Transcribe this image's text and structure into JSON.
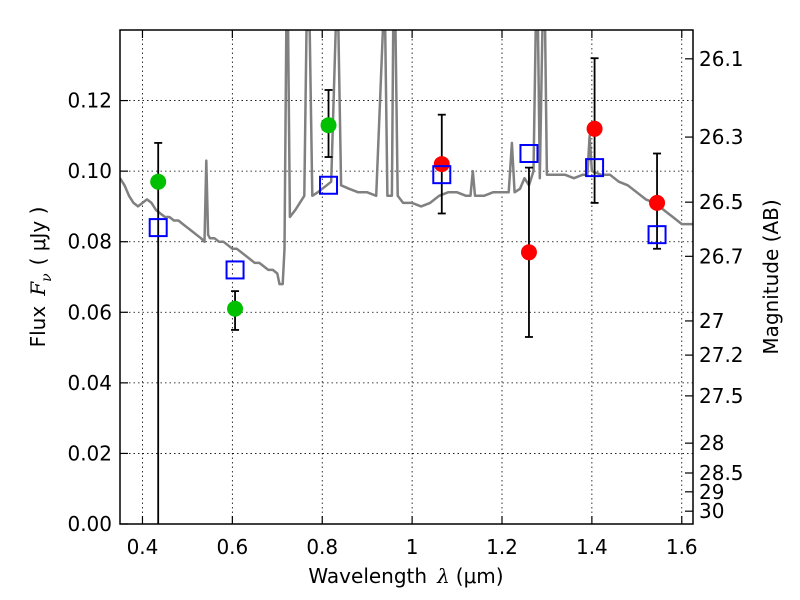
{
  "chart_data": {
    "type": "scatter",
    "xlabel_prefix": "Wavelength",
    "xlabel_symbol": "λ",
    "xlabel_unit": "(μm)",
    "ylabel_prefix": "Flux",
    "ylabel_symbol": "F",
    "ylabel_subscript": "ν",
    "ylabel_unit": "( μJy )",
    "y2label": "Magnitude (AB)",
    "xlim": [
      0.35,
      1.625
    ],
    "ylim": [
      0.0,
      0.14
    ],
    "grid": true,
    "x_ticks": [
      0.4,
      0.6,
      0.8,
      1.0,
      1.2,
      1.4,
      1.6
    ],
    "x_tick_labels": [
      "0.4",
      "0.6",
      "0.8",
      "1",
      "1.2",
      "1.4",
      "1.6"
    ],
    "y_ticks": [
      0.0,
      0.02,
      0.04,
      0.06,
      0.08,
      0.1,
      0.12
    ],
    "y_tick_labels": [
      "0.00",
      "0.02",
      "0.04",
      "0.06",
      "0.08",
      "0.10",
      "0.12"
    ],
    "y2_ticks": [
      {
        "mag": 26.1,
        "label": "26.1"
      },
      {
        "mag": 26.3,
        "label": "26.3"
      },
      {
        "mag": 26.5,
        "label": "26.5"
      },
      {
        "mag": 26.7,
        "label": "26.7"
      },
      {
        "mag": 27.0,
        "label": "27"
      },
      {
        "mag": 27.2,
        "label": "27.2"
      },
      {
        "mag": 27.5,
        "label": "27.5"
      },
      {
        "mag": 28.0,
        "label": "28"
      },
      {
        "mag": 28.5,
        "label": "28.5"
      },
      {
        "mag": 29.0,
        "label": "29"
      },
      {
        "mag": 30.0,
        "label": "30"
      }
    ],
    "colors": {
      "template": "#808080",
      "green": "#00c000",
      "red": "#ff0000",
      "model_box": "#0000ff",
      "errorbar": "#000000"
    },
    "template_spectrum": [
      [
        0.35,
        0.098
      ],
      [
        0.36,
        0.096
      ],
      [
        0.37,
        0.093
      ],
      [
        0.38,
        0.091
      ],
      [
        0.39,
        0.09
      ],
      [
        0.4,
        0.091
      ],
      [
        0.41,
        0.092
      ],
      [
        0.42,
        0.091
      ],
      [
        0.43,
        0.089
      ],
      [
        0.44,
        0.088
      ],
      [
        0.45,
        0.087
      ],
      [
        0.46,
        0.087
      ],
      [
        0.47,
        0.086
      ],
      [
        0.48,
        0.086
      ],
      [
        0.49,
        0.085
      ],
      [
        0.5,
        0.084
      ],
      [
        0.51,
        0.083
      ],
      [
        0.52,
        0.082
      ],
      [
        0.53,
        0.081
      ],
      [
        0.538,
        0.08
      ],
      [
        0.542,
        0.103
      ],
      [
        0.546,
        0.082
      ],
      [
        0.55,
        0.081
      ],
      [
        0.56,
        0.081
      ],
      [
        0.57,
        0.08
      ],
      [
        0.58,
        0.08
      ],
      [
        0.59,
        0.079
      ],
      [
        0.6,
        0.078
      ],
      [
        0.61,
        0.078
      ],
      [
        0.62,
        0.077
      ],
      [
        0.63,
        0.076
      ],
      [
        0.64,
        0.075
      ],
      [
        0.65,
        0.074
      ],
      [
        0.66,
        0.074
      ],
      [
        0.67,
        0.073
      ],
      [
        0.68,
        0.072
      ],
      [
        0.69,
        0.072
      ],
      [
        0.7,
        0.071
      ],
      [
        0.705,
        0.068
      ],
      [
        0.712,
        0.068
      ],
      [
        0.716,
        0.078
      ],
      [
        0.72,
        0.14
      ],
      [
        0.724,
        0.14
      ],
      [
        0.728,
        0.087
      ],
      [
        0.74,
        0.089
      ],
      [
        0.75,
        0.091
      ],
      [
        0.76,
        0.093
      ],
      [
        0.765,
        0.14
      ],
      [
        0.772,
        0.14
      ],
      [
        0.778,
        0.093
      ],
      [
        0.79,
        0.094
      ],
      [
        0.8,
        0.095
      ],
      [
        0.81,
        0.096
      ],
      [
        0.82,
        0.097
      ],
      [
        0.83,
        0.14
      ],
      [
        0.836,
        0.14
      ],
      [
        0.842,
        0.096
      ],
      [
        0.86,
        0.095
      ],
      [
        0.88,
        0.094
      ],
      [
        0.9,
        0.094
      ],
      [
        0.92,
        0.093
      ],
      [
        0.935,
        0.14
      ],
      [
        0.94,
        0.14
      ],
      [
        0.945,
        0.093
      ],
      [
        0.955,
        0.093
      ],
      [
        0.958,
        0.14
      ],
      [
        0.963,
        0.14
      ],
      [
        0.968,
        0.093
      ],
      [
        0.98,
        0.091
      ],
      [
        1.0,
        0.091
      ],
      [
        1.02,
        0.09
      ],
      [
        1.04,
        0.091
      ],
      [
        1.06,
        0.093
      ],
      [
        1.08,
        0.094
      ],
      [
        1.1,
        0.094
      ],
      [
        1.12,
        0.093
      ],
      [
        1.13,
        0.093
      ],
      [
        1.135,
        0.1
      ],
      [
        1.14,
        0.093
      ],
      [
        1.16,
        0.093
      ],
      [
        1.18,
        0.094
      ],
      [
        1.2,
        0.094
      ],
      [
        1.215,
        0.094
      ],
      [
        1.222,
        0.108
      ],
      [
        1.228,
        0.094
      ],
      [
        1.24,
        0.095
      ],
      [
        1.25,
        0.098
      ],
      [
        1.26,
        0.096
      ],
      [
        1.27,
        0.1
      ],
      [
        1.275,
        0.14
      ],
      [
        1.28,
        0.14
      ],
      [
        1.284,
        0.098
      ],
      [
        1.29,
        0.14
      ],
      [
        1.296,
        0.14
      ],
      [
        1.3,
        0.099
      ],
      [
        1.32,
        0.099
      ],
      [
        1.34,
        0.099
      ],
      [
        1.36,
        0.098
      ],
      [
        1.38,
        0.099
      ],
      [
        1.39,
        0.099
      ],
      [
        1.395,
        0.11
      ],
      [
        1.4,
        0.1
      ],
      [
        1.42,
        0.099
      ],
      [
        1.44,
        0.099
      ],
      [
        1.46,
        0.097
      ],
      [
        1.48,
        0.096
      ],
      [
        1.5,
        0.094
      ],
      [
        1.52,
        0.092
      ],
      [
        1.54,
        0.091
      ],
      [
        1.55,
        0.09
      ],
      [
        1.56,
        0.089
      ],
      [
        1.58,
        0.087
      ],
      [
        1.6,
        0.085
      ],
      [
        1.625,
        0.085
      ]
    ],
    "observed_green": [
      {
        "x": 0.435,
        "y": 0.097,
        "err_lo": 0.0,
        "err_hi": 0.108
      },
      {
        "x": 0.606,
        "y": 0.061,
        "err_lo": 0.055,
        "err_hi": 0.066
      },
      {
        "x": 0.814,
        "y": 0.113,
        "err_lo": 0.104,
        "err_hi": 0.123
      }
    ],
    "observed_red": [
      {
        "x": 1.066,
        "y": 0.102,
        "err_lo": 0.088,
        "err_hi": 0.116
      },
      {
        "x": 1.26,
        "y": 0.077,
        "err_lo": 0.053,
        "err_hi": 0.101
      },
      {
        "x": 1.406,
        "y": 0.112,
        "err_lo": 0.091,
        "err_hi": 0.132
      },
      {
        "x": 1.545,
        "y": 0.091,
        "err_lo": 0.078,
        "err_hi": 0.105
      }
    ],
    "model_points": [
      {
        "x": 0.435,
        "y": 0.084
      },
      {
        "x": 0.606,
        "y": 0.072
      },
      {
        "x": 0.814,
        "y": 0.096
      },
      {
        "x": 1.066,
        "y": 0.099
      },
      {
        "x": 1.26,
        "y": 0.105
      },
      {
        "x": 1.406,
        "y": 0.101
      },
      {
        "x": 1.545,
        "y": 0.082
      }
    ]
  }
}
